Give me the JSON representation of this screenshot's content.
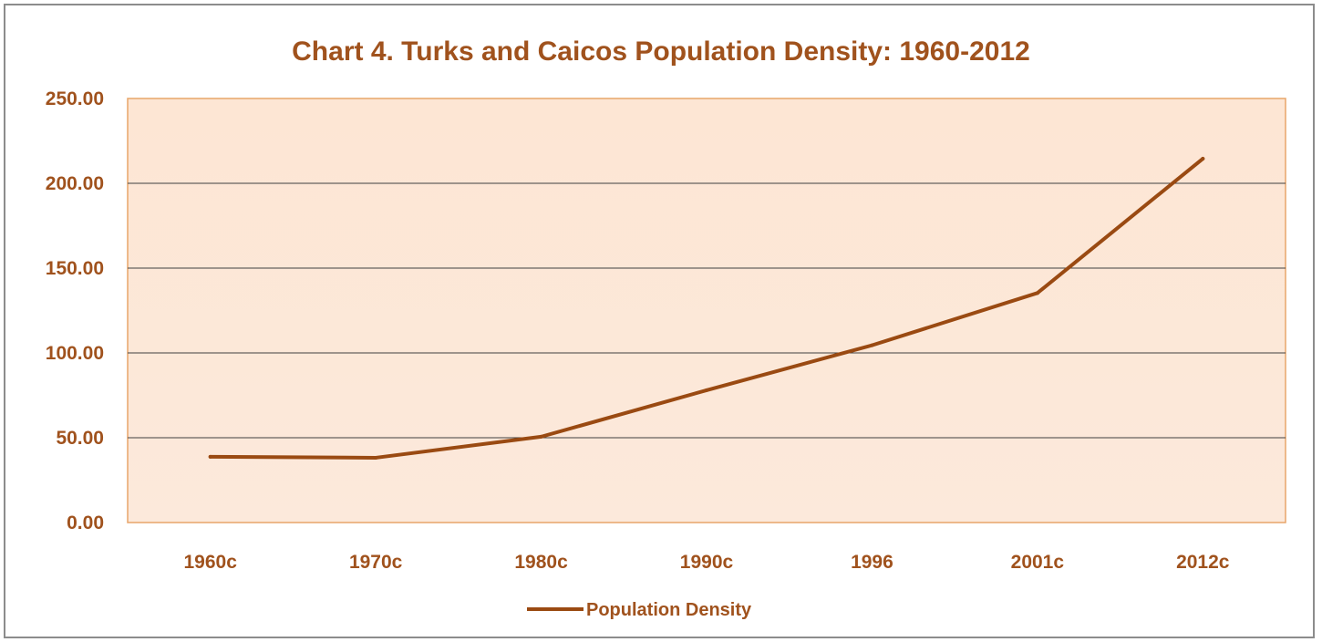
{
  "colors": {
    "text": "#a0521d",
    "line": "#9a4a12",
    "plot_fill_top": "#fde6d4",
    "plot_fill_bottom": "#fce9db",
    "plot_border": "#e8a56a",
    "grid": "#404040"
  },
  "chart_data": {
    "type": "line",
    "title": "Chart 4. Turks and Caicos Population Density: 1960-2012",
    "xlabel": "",
    "ylabel": "",
    "categories": [
      "1960c",
      "1970c",
      "1980c",
      "1990c",
      "1996",
      "2001c",
      "2012c"
    ],
    "series": [
      {
        "name": "Population Density",
        "values": [
          38.8,
          38.2,
          50.6,
          78.0,
          104.5,
          135.3,
          214.5
        ]
      }
    ],
    "ylim": [
      0,
      250
    ],
    "yticks": [
      "0.00",
      "50.00",
      "100.00",
      "150.00",
      "200.00",
      "250.00"
    ],
    "grid": true,
    "legend": "bottom"
  }
}
